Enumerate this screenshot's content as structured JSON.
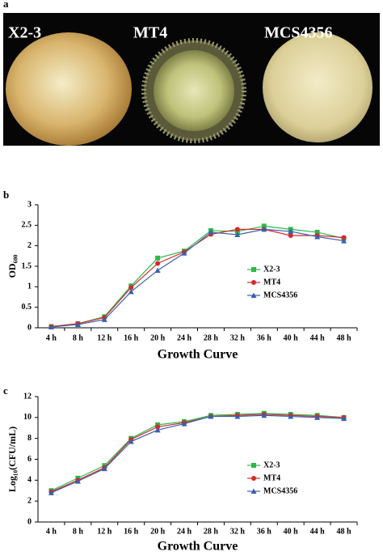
{
  "panel_labels": [
    "a",
    "b",
    "c"
  ],
  "photo_labels": [
    "X2-3",
    "MT4",
    "MCS4356"
  ],
  "chart_data": [
    {
      "type": "line",
      "y_label": "OD₆₀₀",
      "x_label": "Growth Curve",
      "categories": [
        "4 h",
        "8 h",
        "12 h",
        "16 h",
        "20 h",
        "24 h",
        "28 h",
        "32 h",
        "36 h",
        "40 h",
        "44 h",
        "48 h"
      ],
      "ylim": [
        0,
        3
      ],
      "yticks": [
        0,
        0.5,
        1,
        1.5,
        2,
        2.5,
        3
      ],
      "series": [
        {
          "name": "X2-3",
          "color": "#2db84a",
          "marker": "square",
          "values": [
            0.03,
            0.1,
            0.27,
            1.02,
            1.7,
            1.87,
            2.37,
            2.35,
            2.48,
            2.4,
            2.33,
            2.18
          ]
        },
        {
          "name": "MT4",
          "color": "#d42a2a",
          "marker": "circle",
          "values": [
            0.03,
            0.1,
            0.25,
            0.98,
            1.57,
            1.85,
            2.28,
            2.4,
            2.4,
            2.25,
            2.25,
            2.2
          ]
        },
        {
          "name": "MCS4356",
          "color": "#3a5fae",
          "marker": "triangle",
          "values": [
            0.02,
            0.08,
            0.2,
            0.88,
            1.4,
            1.82,
            2.33,
            2.27,
            2.4,
            2.35,
            2.22,
            2.12
          ]
        }
      ]
    },
    {
      "type": "line",
      "y_label": "Log₁₀(CFU/mL)",
      "x_label": "Growth Curve",
      "categories": [
        "4 h",
        "8 h",
        "12 h",
        "16 h",
        "20 h",
        "24 h",
        "28 h",
        "32 h",
        "36 h",
        "40 h",
        "44 h",
        "48 h"
      ],
      "ylim": [
        0,
        12
      ],
      "yticks": [
        0,
        2,
        4,
        6,
        8,
        10,
        12
      ],
      "series": [
        {
          "name": "X2-3",
          "color": "#2db84a",
          "marker": "square",
          "values": [
            3.0,
            4.2,
            5.4,
            8.0,
            9.3,
            9.6,
            10.2,
            10.3,
            10.4,
            10.3,
            10.2,
            10.0
          ]
        },
        {
          "name": "MT4",
          "color": "#d42a2a",
          "marker": "circle",
          "values": [
            2.9,
            4.0,
            5.2,
            7.9,
            9.1,
            9.5,
            10.1,
            10.2,
            10.3,
            10.2,
            10.1,
            10.0
          ]
        },
        {
          "name": "MCS4356",
          "color": "#3a5fae",
          "marker": "triangle",
          "values": [
            2.8,
            3.9,
            5.1,
            7.7,
            8.8,
            9.4,
            10.1,
            10.1,
            10.2,
            10.1,
            10.0,
            9.9
          ]
        }
      ]
    }
  ]
}
